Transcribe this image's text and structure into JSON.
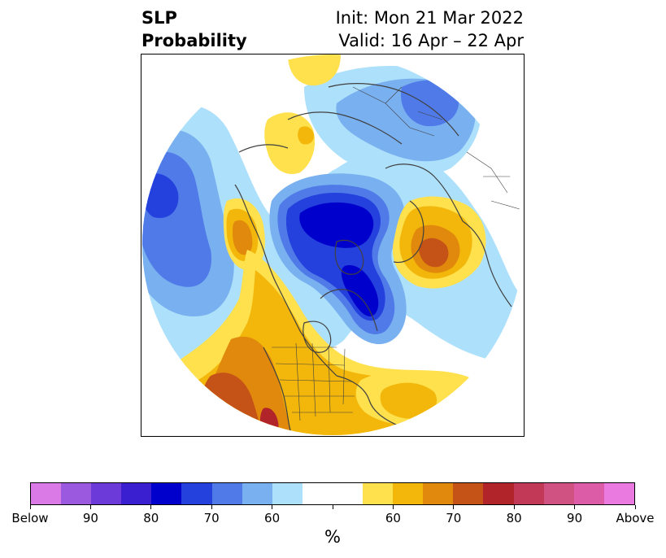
{
  "title": {
    "left_line1": "SLP",
    "left_line2": "Probability",
    "right_line1": "Init: Mon 21 Mar 2022",
    "right_line2": "Valid: 16 Apr – 22 Apr"
  },
  "colorbar": {
    "colors": [
      "#d97ae6",
      "#9b59e0",
      "#6c3ad9",
      "#3a1fd1",
      "#0000cc",
      "#2440dd",
      "#4f7ae8",
      "#79b0f0",
      "#ade0fb",
      "#ffffff",
      "#ffffff",
      "#ffe04d",
      "#f2b70a",
      "#e0890d",
      "#c55217",
      "#b0242a",
      "#c23857",
      "#d05282",
      "#dc5ca8",
      "#ea7ae0"
    ],
    "labels": [
      "Below",
      "90",
      "80",
      "70",
      "60",
      "",
      "60",
      "70",
      "80",
      "90",
      "Above"
    ],
    "unit": "%"
  },
  "map_palette": {
    "below_60": "#ade0fb",
    "below_70": "#79b0f0",
    "below_80": "#4f7ae8",
    "below_90": "#0000cc",
    "below_85": "#2440dd",
    "above_60": "#ffe04d",
    "above_70": "#f2b70a",
    "above_80": "#e0890d",
    "above_85": "#c55217",
    "above_90": "#b0242a",
    "coast": "#404040"
  }
}
